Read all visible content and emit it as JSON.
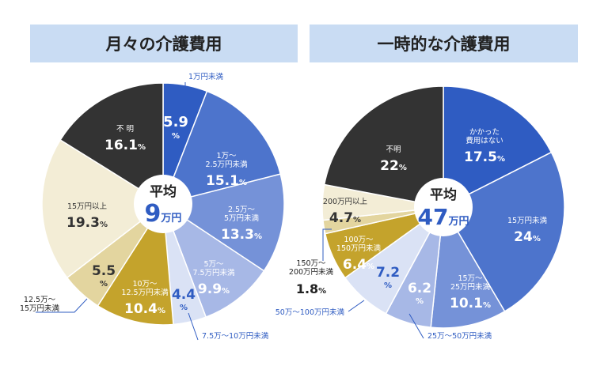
{
  "chart_data": [
    {
      "type": "pie",
      "title": "月々の介護費用",
      "center_label": "平均",
      "center_value": "9",
      "center_unit": "万円",
      "slices": [
        {
          "label": "1万円未満",
          "value": 5.9,
          "display": "5.9",
          "color": "#2f5cc2"
        },
        {
          "label": "1万～2.5万円未満",
          "value": 15.1,
          "display": "15.1",
          "color": "#4d74cc"
        },
        {
          "label": "2.5万～5万円未満",
          "value": 13.3,
          "display": "13.3",
          "color": "#7592d8"
        },
        {
          "label": "5万～7.5万円未満",
          "value": 9.9,
          "display": "9.9",
          "color": "#a7b8e6"
        },
        {
          "label": "7.5万～10万円未満",
          "value": 4.4,
          "display": "4.4",
          "color": "#dae2f5"
        },
        {
          "label": "10万～12.5万円未満",
          "value": 10.4,
          "display": "10.4",
          "color": "#c4a32c"
        },
        {
          "label": "12.5万～15万円未満",
          "value": 5.5,
          "display": "5.5",
          "color": "#e3d59f"
        },
        {
          "label": "15万円以上",
          "value": 19.3,
          "display": "19.3",
          "color": "#f3edd6"
        },
        {
          "label": "不 明",
          "value": 16.1,
          "display": "16.1",
          "color": "#333333"
        }
      ]
    },
    {
      "type": "pie",
      "title": "一時的な介護費用",
      "center_label": "平均",
      "center_value": "47",
      "center_unit": "万円",
      "slices": [
        {
          "label": "かかった費用はない",
          "value": 17.5,
          "display": "17.5",
          "color": "#2f5cc2"
        },
        {
          "label": "15万円未満",
          "value": 24,
          "display": "24",
          "color": "#4d74cc"
        },
        {
          "label": "15万～25万円未満",
          "value": 10.1,
          "display": "10.1",
          "color": "#7592d8"
        },
        {
          "label": "25万～50万円未満",
          "value": 6.2,
          "display": "6.2",
          "color": "#a7b8e6"
        },
        {
          "label": "50万～100万円未満",
          "value": 7.2,
          "display": "7.2",
          "color": "#dae2f5"
        },
        {
          "label": "100万～150万円未満",
          "value": 6.4,
          "display": "6.4",
          "color": "#c4a32c"
        },
        {
          "label": "150万～200万円未満",
          "value": 1.8,
          "display": "1.8",
          "color": "#e3d59f"
        },
        {
          "label": "200万円以上",
          "value": 4.7,
          "display": "4.7",
          "color": "#f3edd6"
        },
        {
          "label": "不明",
          "value": 22,
          "display": "22",
          "color": "#333333"
        }
      ]
    }
  ]
}
